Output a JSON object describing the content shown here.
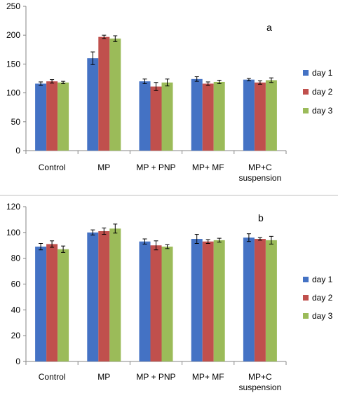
{
  "chart_data": [
    {
      "type": "bar",
      "panel_label": "a",
      "categories": [
        [
          "Control"
        ],
        [
          "MP"
        ],
        [
          "MP + PNP"
        ],
        [
          "MP+ MF"
        ],
        [
          "MP+C",
          "suspension"
        ]
      ],
      "ylim": [
        0,
        250
      ],
      "yticks": [
        0,
        50,
        100,
        150,
        200,
        250
      ],
      "series": [
        {
          "name": "day 1",
          "color": "#4472C4",
          "values": [
            116,
            160,
            120,
            124,
            123
          ],
          "errors": [
            3,
            11,
            4,
            4,
            2
          ]
        },
        {
          "name": "day 2",
          "color": "#C0504D",
          "values": [
            120,
            197,
            111,
            116,
            118
          ],
          "errors": [
            3,
            3,
            7,
            3,
            3
          ]
        },
        {
          "name": "day 3",
          "color": "#9BBB59",
          "values": [
            118,
            194,
            118,
            119,
            122
          ],
          "errors": [
            2,
            5,
            6,
            3,
            4
          ]
        }
      ],
      "legend_position": "right",
      "grid": false
    },
    {
      "type": "bar",
      "panel_label": "b",
      "categories": [
        [
          "Control"
        ],
        [
          "MP"
        ],
        [
          "MP + PNP"
        ],
        [
          "MP+ MF"
        ],
        [
          "MP+C",
          "suspension"
        ]
      ],
      "ylim": [
        0,
        120
      ],
      "yticks": [
        0,
        20,
        40,
        60,
        80,
        100,
        120
      ],
      "series": [
        {
          "name": "day 1",
          "color": "#4472C4",
          "values": [
            89,
            100,
            93,
            95,
            96
          ],
          "errors": [
            2.5,
            2,
            2,
            3.5,
            3
          ]
        },
        {
          "name": "day 2",
          "color": "#C0504D",
          "values": [
            91,
            101,
            90,
            93,
            95
          ],
          "errors": [
            2.5,
            2.5,
            3.5,
            1.5,
            1
          ]
        },
        {
          "name": "day 3",
          "color": "#9BBB59",
          "values": [
            87,
            103,
            89,
            94,
            94
          ],
          "errors": [
            2.5,
            3.5,
            1.5,
            1.5,
            3
          ]
        }
      ],
      "legend_position": "right",
      "grid": false
    }
  ]
}
